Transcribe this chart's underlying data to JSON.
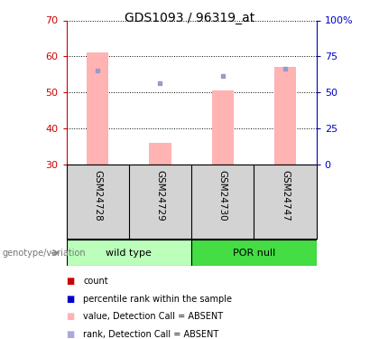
{
  "title": "GDS1093 / 96319_at",
  "samples": [
    "GSM24728",
    "GSM24729",
    "GSM24730",
    "GSM24747"
  ],
  "bar_values": [
    61,
    36,
    50.5,
    57
  ],
  "bar_bottom": 30,
  "dot_values": [
    56,
    52.5,
    54.5,
    56.5
  ],
  "bar_color": "#ffb3b3",
  "dot_color": "#9999cc",
  "ylim": [
    30,
    70
  ],
  "yticks_left": [
    30,
    40,
    50,
    60,
    70
  ],
  "yticks_right": [
    0,
    25,
    50,
    75,
    100
  ],
  "right_yaxis_color": "#0000cc",
  "left_yaxis_color": "#cc0000",
  "group_wt_color": "#bbffbb",
  "group_por_color": "#44dd44",
  "sample_bg_color": "#d3d3d3",
  "genotype_label": "genotype/variation",
  "legend_colors": [
    "#cc0000",
    "#0000cc",
    "#ffb3b3",
    "#aaaadd"
  ],
  "legend_labels": [
    "count",
    "percentile rank within the sample",
    "value, Detection Call = ABSENT",
    "rank, Detection Call = ABSENT"
  ],
  "bar_width": 0.35
}
